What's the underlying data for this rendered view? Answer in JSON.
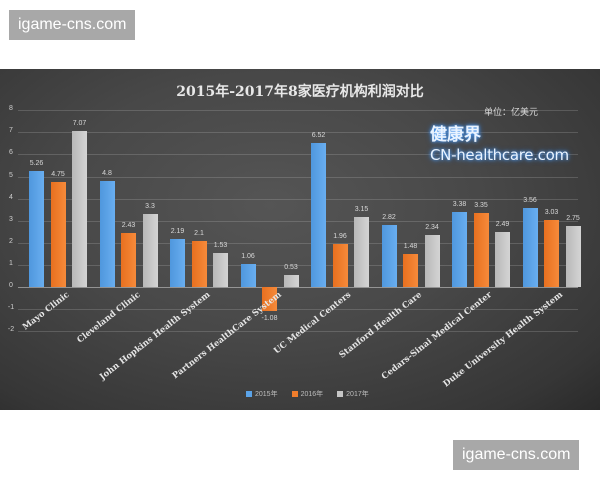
{
  "watermarks": {
    "top": "igame-cns.com",
    "bottom": "igame-cns.com"
  },
  "overlay_brand": {
    "line1": "健康界",
    "line2": "CN-healthcare.com"
  },
  "colors": {
    "panel_bg": "#444444",
    "s2015": "#5ba3e8",
    "s2016": "#f07d2c",
    "s2017": "#c6c6c6"
  },
  "chart_data": {
    "type": "bar",
    "title": "2015年-2017年8家医疗机构利润对比",
    "unit_label": "单位：亿美元",
    "xlabel": "",
    "ylabel": "",
    "ylim": [
      -2,
      8
    ],
    "yticks": [
      8,
      7,
      6,
      5,
      4,
      3,
      2,
      1,
      0,
      -1,
      -2
    ],
    "grid": true,
    "legend_position": "bottom",
    "categories": [
      "Mayo Clinic",
      "Cleveland Clinic",
      "John Hopkins Health System",
      "Partners HealthCare System",
      "UC Medical Centers",
      "Stanford Health Care",
      "Cedars-Sinai Medical Center",
      "Duke University Health System"
    ],
    "series": [
      {
        "name": "2015年",
        "values": [
          5.26,
          4.8,
          2.19,
          1.06,
          6.52,
          2.82,
          3.38,
          3.56
        ]
      },
      {
        "name": "2016年",
        "values": [
          4.75,
          2.43,
          2.1,
          -1.08,
          1.96,
          1.48,
          3.35,
          3.03
        ]
      },
      {
        "name": "2017年",
        "values": [
          7.07,
          3.3,
          1.53,
          0.53,
          3.15,
          2.34,
          2.49,
          2.75
        ]
      }
    ]
  }
}
